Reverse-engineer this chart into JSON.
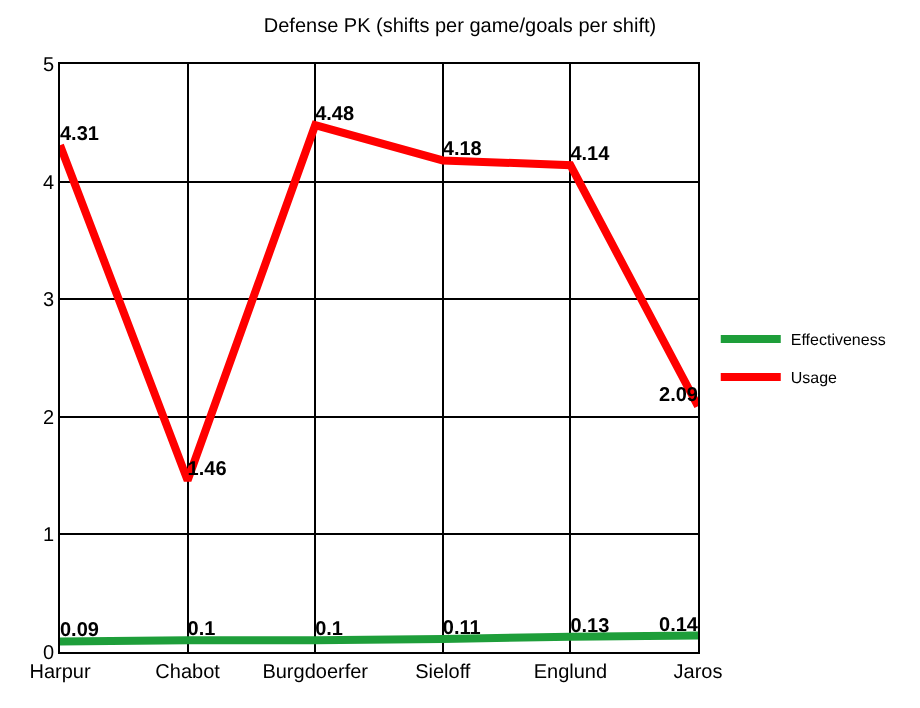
{
  "chart_data": {
    "type": "line",
    "title": "Defense PK (shifts per game/goals per shift)",
    "categories": [
      "Harpur",
      "Chabot",
      "Burgdoerfer",
      "Sieloff",
      "Englund",
      "Jaros"
    ],
    "series": [
      {
        "name": "Effectiveness",
        "color": "#1e9e3a",
        "values": [
          0.09,
          0.1,
          0.1,
          0.11,
          0.13,
          0.14
        ]
      },
      {
        "name": "Usage",
        "color": "#ff0000",
        "values": [
          4.31,
          1.46,
          4.48,
          4.18,
          4.14,
          2.09
        ]
      }
    ],
    "ylim": [
      0,
      5
    ],
    "yticks": [
      0,
      1,
      2,
      3,
      4,
      5
    ],
    "grid": true,
    "legend": "right",
    "data_labels": true,
    "marker": "none",
    "line_style": "solid"
  }
}
